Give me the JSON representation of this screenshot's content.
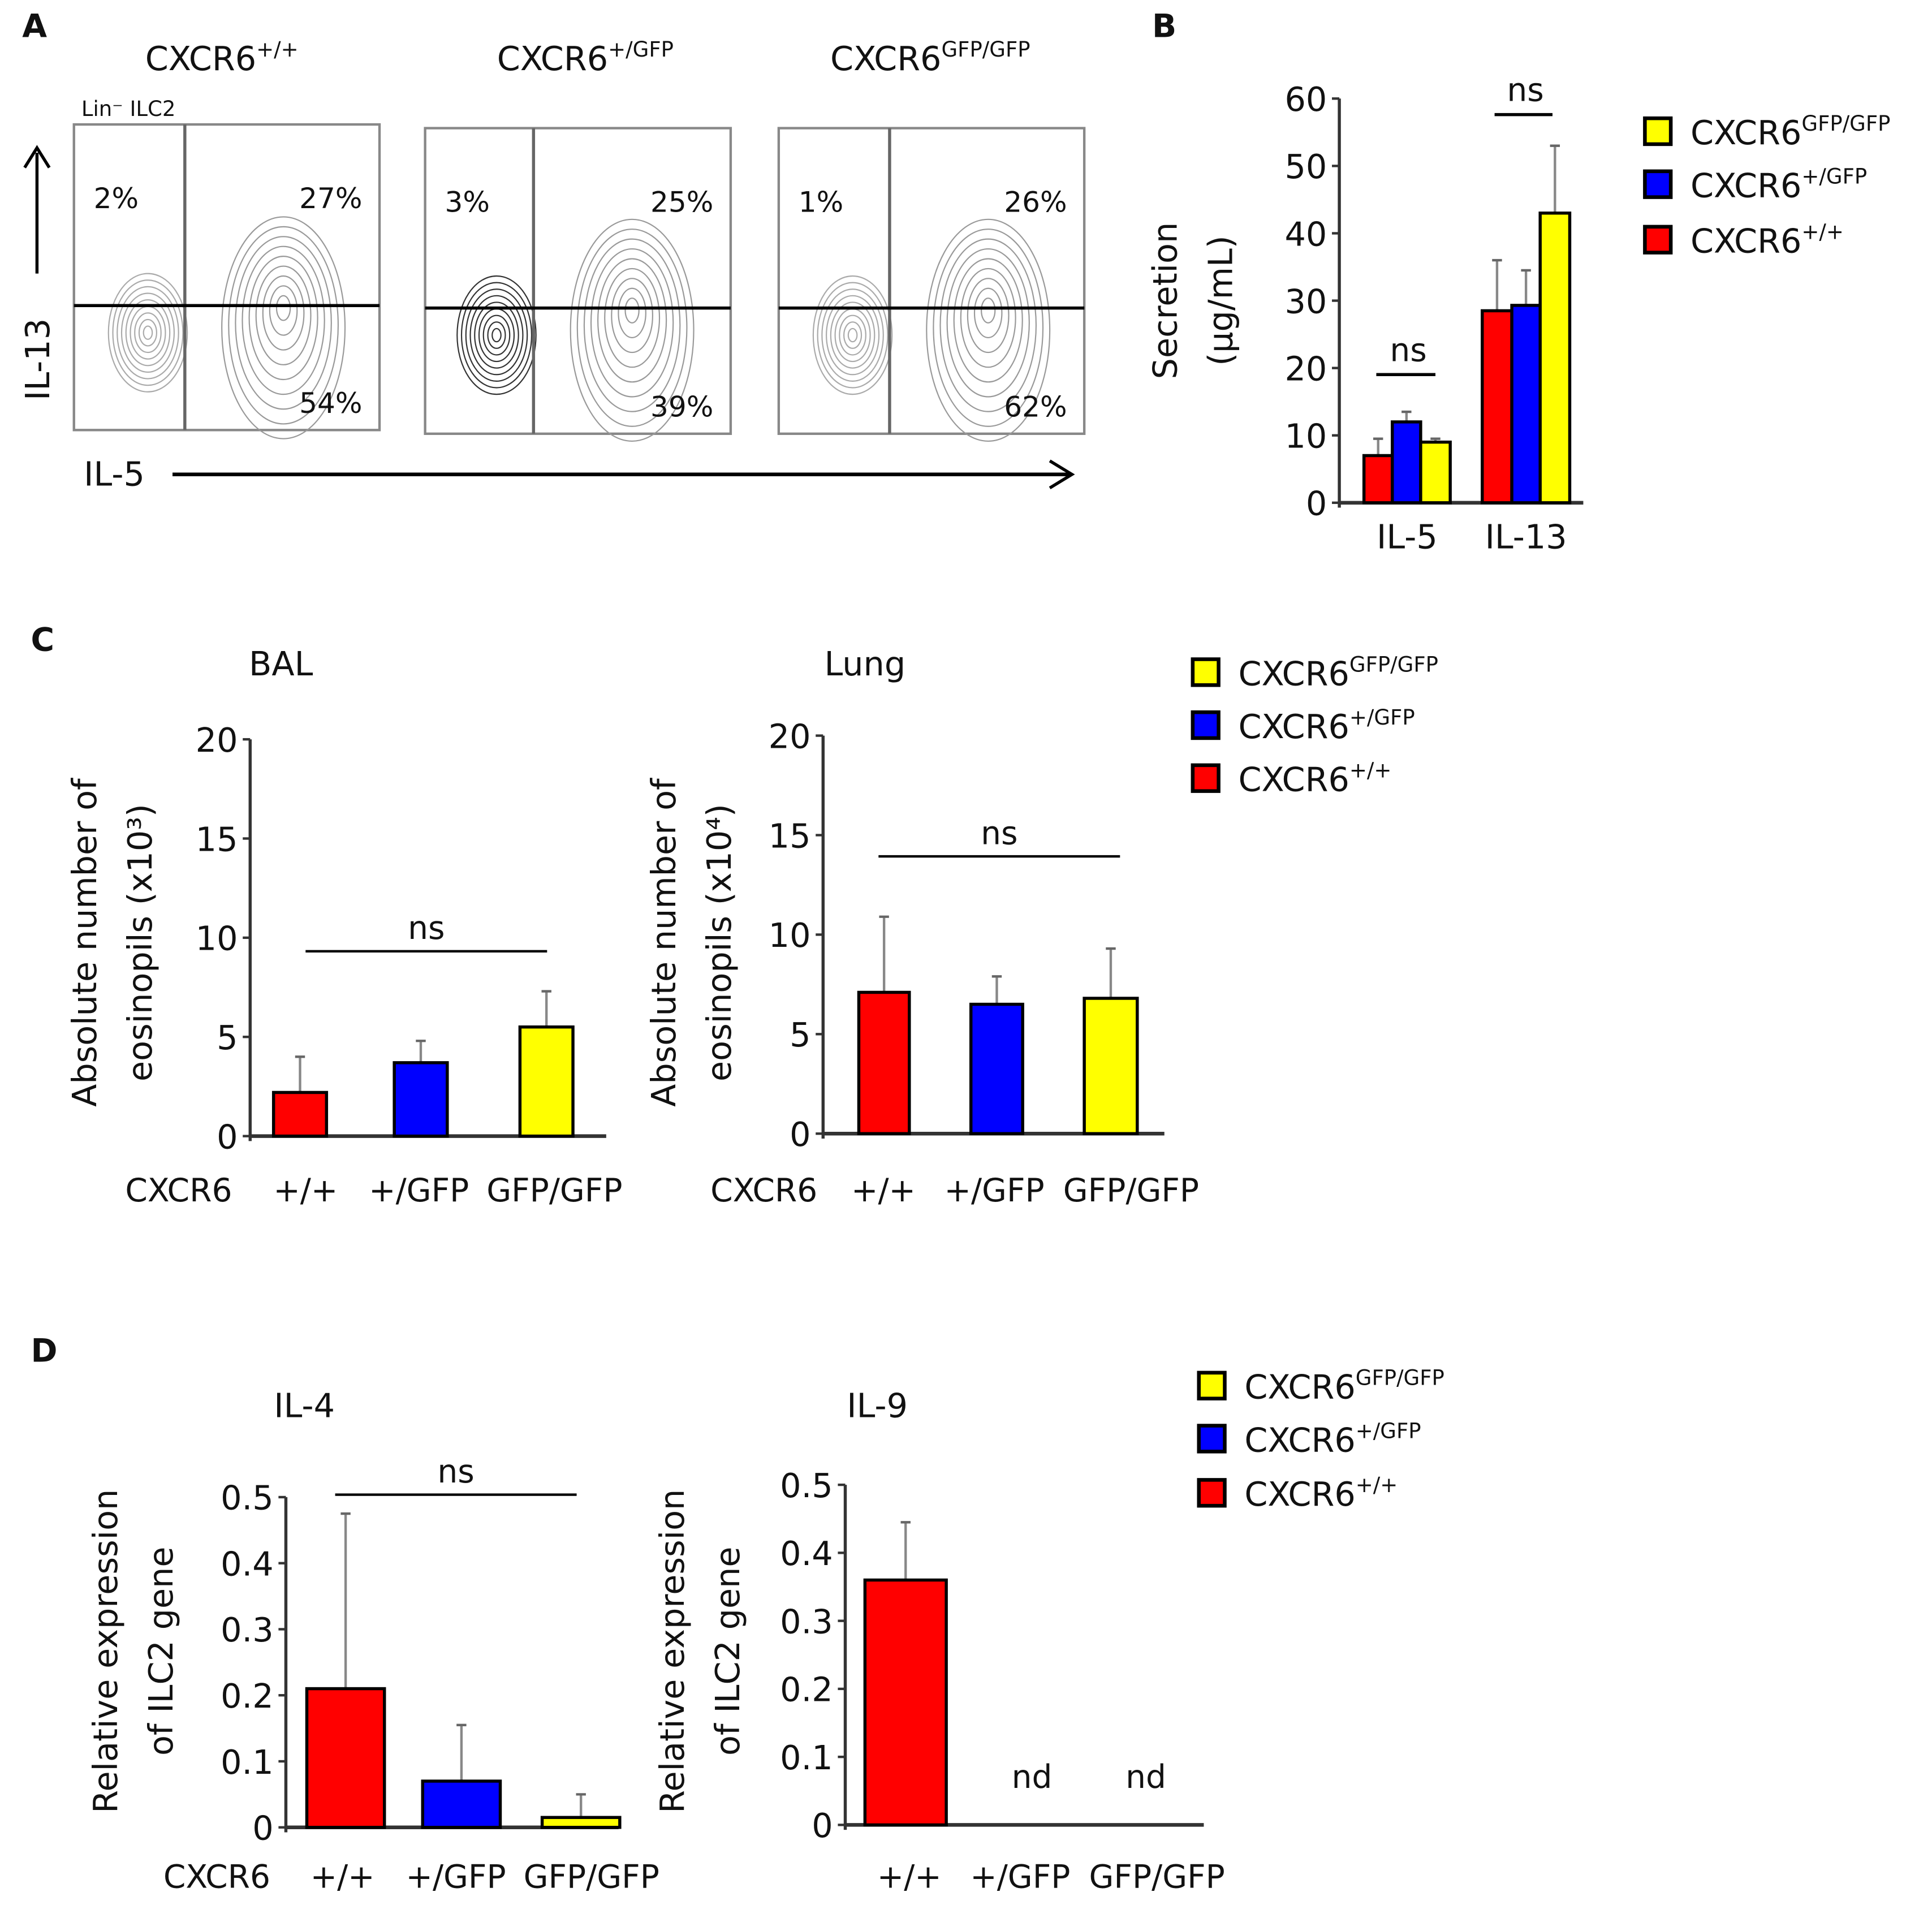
{
  "colors": {
    "wt": "#ff0000",
    "het": "#0000ff",
    "ko": "#ffff00"
  },
  "panel_labels": [
    "A",
    "B",
    "C",
    "D"
  ],
  "genotype_base": "CXCR6",
  "genotypes_sup": {
    "wt": "+/+",
    "het": "+/GFP",
    "ko": "GFP/GFP"
  },
  "legend_order": [
    "ko",
    "het",
    "wt"
  ],
  "flow": {
    "gate_label": "Lin⁻ ILC2",
    "y_label": "IL-13",
    "x_label": "IL-5",
    "plots": [
      {
        "title_sup": "+/+",
        "upper_left": "2%",
        "upper_right": "27%",
        "lower_right": "54%"
      },
      {
        "title_sup": "+/GFP",
        "upper_left": "3%",
        "upper_right": "25%",
        "lower_right": "39%"
      },
      {
        "title_sup": "GFP/GFP",
        "upper_left": "1%",
        "upper_right": "26%",
        "lower_right": "62%"
      }
    ]
  },
  "chart_data": [
    {
      "id": "B",
      "type": "bar",
      "title": "",
      "ylabel_line1": "Secretion",
      "ylabel_line2": "(µg/mL)",
      "ylim": [
        0,
        60
      ],
      "yticks": [
        0,
        10,
        20,
        30,
        40,
        50,
        60
      ],
      "tick_labels": [
        "0",
        "10",
        "20",
        "30",
        "40",
        "50",
        "60"
      ],
      "categories": [
        "IL-5",
        "IL-13"
      ],
      "series": [
        {
          "name": "CXCR6+/+",
          "key": "wt",
          "values": [
            7,
            28.5
          ],
          "err_upper": [
            9.5,
            36
          ]
        },
        {
          "name": "CXCR6+/GFP",
          "key": "het",
          "values": [
            12,
            29.3
          ],
          "err_upper": [
            13.5,
            34.5
          ]
        },
        {
          "name": "CXCR6GFP/GFP",
          "key": "ko",
          "values": [
            9,
            43
          ],
          "err_upper": [
            9.5,
            53
          ]
        }
      ],
      "annotations": [
        "ns",
        "ns"
      ]
    },
    {
      "id": "C-BAL",
      "type": "bar",
      "title": "BAL",
      "ylabel_line1": "Absolute number of",
      "ylabel_line2": "eosinopils (x10³)",
      "ylim": [
        0,
        20
      ],
      "yticks": [
        0,
        5,
        10,
        15,
        20
      ],
      "tick_labels": [
        "0",
        "5",
        "10",
        "15",
        "20"
      ],
      "xlabel": "CXCR6",
      "categories": [
        "+/+",
        "+/GFP",
        "GFP/GFP"
      ],
      "values": [
        2.2,
        3.7,
        5.5
      ],
      "err_upper": [
        4.0,
        4.8,
        7.3
      ],
      "annotation": "ns"
    },
    {
      "id": "C-Lung",
      "type": "bar",
      "title": "Lung",
      "ylabel_line1": "Absolute number of",
      "ylabel_line2": "eosinopils (x10⁴)",
      "ylim": [
        0,
        20
      ],
      "yticks": [
        0,
        5,
        10,
        15,
        20
      ],
      "tick_labels": [
        "0",
        "5",
        "10",
        "15",
        "20"
      ],
      "xlabel": "CXCR6",
      "categories": [
        "+/+",
        "+/GFP",
        "GFP/GFP"
      ],
      "values": [
        7.1,
        6.5,
        6.8
      ],
      "err_upper": [
        10.9,
        7.9,
        9.3
      ],
      "annotation": "ns"
    },
    {
      "id": "D-IL4",
      "type": "bar",
      "title": "IL-4",
      "ylabel_line1": "Relative expression",
      "ylabel_line2": "of ILC2 gene",
      "ylim": [
        0,
        0.5
      ],
      "yticks": [
        0,
        0.1,
        0.2,
        0.3,
        0.4,
        0.5
      ],
      "tick_labels": [
        "0",
        "0.1",
        "0.2",
        "0.3",
        "0.4",
        "0.5"
      ],
      "xlabel": "CXCR6",
      "categories": [
        "+/+",
        "+/GFP",
        "GFP/GFP"
      ],
      "values": [
        0.21,
        0.07,
        0.015
      ],
      "err_upper": [
        0.475,
        0.155,
        0.05
      ],
      "annotation": "ns"
    },
    {
      "id": "D-IL9",
      "type": "bar",
      "title": "IL-9",
      "ylabel_line1": "Relative expression",
      "ylabel_line2": "of ILC2 gene",
      "ylim": [
        0,
        0.5
      ],
      "yticks": [
        0,
        0.1,
        0.2,
        0.3,
        0.4,
        0.5
      ],
      "tick_labels": [
        "0",
        "0.1",
        "0.2",
        "0.3",
        "0.4",
        "0.5"
      ],
      "xlabel": "",
      "categories": [
        "+/+",
        "+/GFP",
        "GFP/GFP"
      ],
      "values": [
        0.36,
        null,
        null
      ],
      "err_upper": [
        0.445,
        null,
        null
      ],
      "bar_labels": [
        "",
        "nd",
        "nd"
      ]
    }
  ]
}
